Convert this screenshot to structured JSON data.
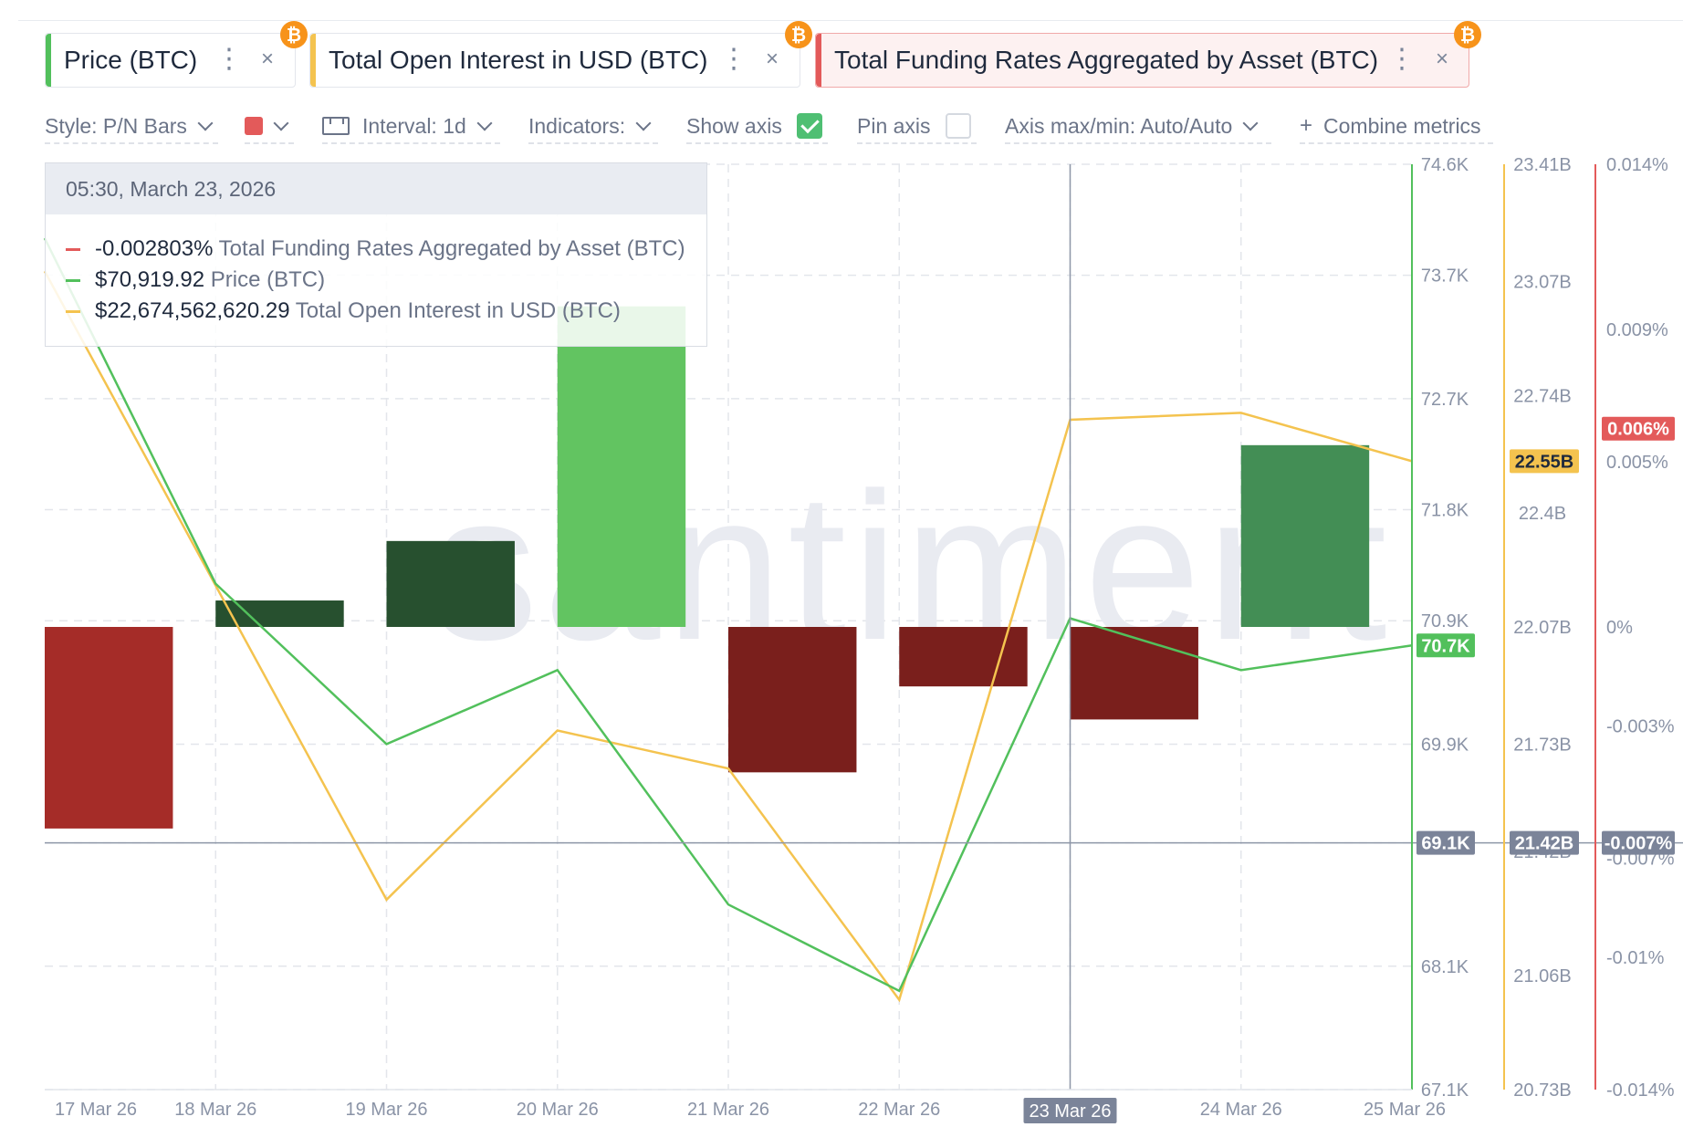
{
  "metrics": [
    {
      "label": "Price (BTC)",
      "color": "#52c05c"
    },
    {
      "label": "Total Open Interest in USD (BTC)",
      "color": "#f4c34f"
    },
    {
      "label": "Total Funding Rates Aggregated by Asset (BTC)",
      "color": "#e35a5a"
    }
  ],
  "metric_icon": "bitcoin-icon",
  "controls": {
    "style": "Style: P/N Bars",
    "interval": "Interval: 1d",
    "indicators": "Indicators:",
    "show_axis": "Show axis",
    "show_axis_checked": true,
    "pin_axis": "Pin axis",
    "pin_axis_checked": false,
    "axis_maxmin": "Axis max/min: Auto/Auto",
    "combine": "Combine metrics"
  },
  "tooltip": {
    "date": "05:30, March 23, 2026",
    "rows": [
      {
        "value": "-0.002803%",
        "name": "Total Funding Rates Aggregated by Asset (BTC)",
        "color": "#e35a5a"
      },
      {
        "value": "$70,919.92",
        "name": "Price (BTC)",
        "color": "#52c05c"
      },
      {
        "value": "$22,674,562,620.29",
        "name": "Total Open Interest in USD (BTC)",
        "color": "#f4c34f"
      }
    ]
  },
  "watermark": "santiment",
  "chart_data": {
    "type": "line",
    "x": [
      "17 Mar 26",
      "18 Mar 26",
      "19 Mar 26",
      "20 Mar 26",
      "21 Mar 26",
      "22 Mar 26",
      "23 Mar 26",
      "24 Mar 26",
      "25 Mar 26"
    ],
    "highlighted_x": "23 Mar 26",
    "series": [
      {
        "name": "Price (BTC)",
        "color": "#52c05c",
        "axis": "price",
        "values": [
          74.0,
          71.2,
          69.9,
          70.5,
          68.6,
          67.9,
          70.92,
          70.5,
          70.7
        ]
      },
      {
        "name": "Total Open Interest in USD (BTC)",
        "color": "#f4c34f",
        "axis": "oi",
        "values": [
          23.1,
          22.19,
          21.28,
          21.77,
          21.66,
          20.99,
          22.67,
          22.69,
          22.55
        ]
      },
      {
        "name": "Total Funding Rates Aggregated by Asset (BTC)",
        "type": "bar",
        "axis": "fr",
        "values": [
          -0.0061,
          0.0008,
          0.0026,
          0.0097,
          -0.0044,
          -0.0018,
          -0.0028,
          0.0055,
          null
        ],
        "colors": [
          "#a52c28",
          "#27502f",
          "#27502f",
          "#62c461",
          "#7a1f1c",
          "#7a1f1c",
          "#7a1f1c",
          "#438e55",
          null
        ]
      }
    ],
    "axes": {
      "price": {
        "ylim": [
          67.1,
          74.6
        ],
        "ticks": [
          "74.6K",
          "73.7K",
          "72.7K",
          "71.8K",
          "70.9K",
          "69.9K",
          "69.1K",
          "68.1K",
          "67.1K"
        ],
        "tick_values": [
          74.6,
          73.7,
          72.7,
          71.8,
          70.9,
          69.9,
          69.1,
          68.1,
          67.1
        ],
        "color": "#52c05c",
        "current_label": "70.7K",
        "current_value": 70.7,
        "crosshair_label": "69.1K"
      },
      "oi": {
        "ylim": [
          20.73,
          23.41
        ],
        "ticks": [
          "23.41B",
          "23.07B",
          "22.74B",
          "22.4B",
          "22.07B",
          "21.73B",
          "21.42B",
          "21.06B",
          "20.73B"
        ],
        "tick_values": [
          23.41,
          23.07,
          22.74,
          22.4,
          22.07,
          21.73,
          21.42,
          21.06,
          20.73
        ],
        "color": "#f4c34f",
        "current_label": "22.55B",
        "current_value": 22.55,
        "crosshair_label": "21.42B"
      },
      "fr": {
        "ylim": [
          -0.014,
          0.014
        ],
        "ticks": [
          "0.014%",
          "0.009%",
          "0.005%",
          "0%",
          "-0.003%",
          "-0.007%",
          "-0.01%",
          "-0.014%"
        ],
        "tick_values": [
          0.014,
          0.009,
          0.005,
          0,
          -0.003,
          -0.007,
          -0.01,
          -0.014
        ],
        "color": "#e35a5a",
        "current_label": "0.006%",
        "current_value": 0.006,
        "crosshair_label": "-0.007%"
      }
    },
    "grid": true,
    "crosshair_y_price": 69.1
  }
}
